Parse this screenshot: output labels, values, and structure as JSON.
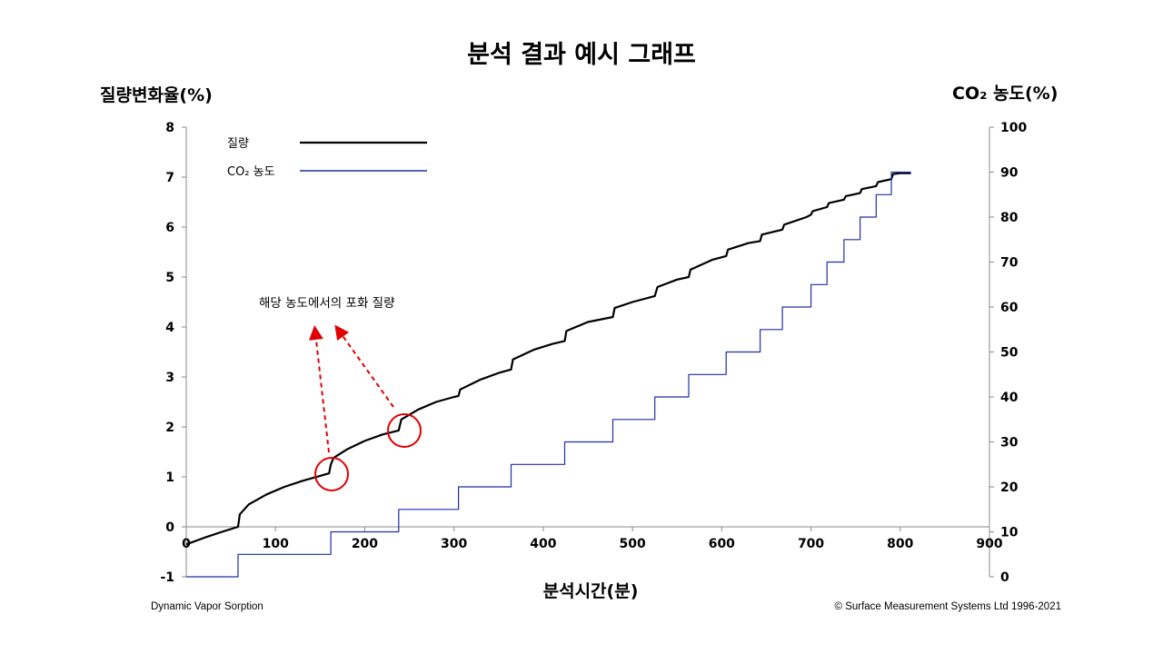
{
  "title": "분석 결과 예시 그래프",
  "footer": {
    "left": "Dynamic Vapor Sorption",
    "right": "© Surface Measurement Systems Ltd 1996-2021"
  },
  "annotation": "해당 농도에서의 포화 질량",
  "chart_data": {
    "type": "line",
    "xlabel": "분석시간(분)",
    "ylabel": "질량변화율(%)",
    "y2label": "CO₂ 농도(%)",
    "xlim": [
      0,
      900
    ],
    "ylim": [
      -1,
      8
    ],
    "y2lim": [
      0,
      100
    ],
    "xticks": [
      0,
      100,
      200,
      300,
      400,
      500,
      600,
      700,
      800,
      900
    ],
    "yticks": [
      -1,
      0,
      1,
      2,
      3,
      4,
      5,
      6,
      7,
      8
    ],
    "y2ticks": [
      0,
      10,
      20,
      30,
      40,
      50,
      60,
      70,
      80,
      90,
      100
    ],
    "legend_position": "top-left",
    "series": [
      {
        "name": "질량",
        "axis": "left",
        "color": "#000000",
        "points": [
          [
            0,
            -0.35
          ],
          [
            20,
            -0.22
          ],
          [
            40,
            -0.1
          ],
          [
            58,
            0.0
          ],
          [
            60,
            0.25
          ],
          [
            70,
            0.45
          ],
          [
            90,
            0.65
          ],
          [
            110,
            0.8
          ],
          [
            130,
            0.92
          ],
          [
            150,
            1.02
          ],
          [
            160,
            1.07
          ],
          [
            162,
            1.25
          ],
          [
            165,
            1.38
          ],
          [
            180,
            1.55
          ],
          [
            200,
            1.72
          ],
          [
            220,
            1.85
          ],
          [
            238,
            1.93
          ],
          [
            241,
            2.15
          ],
          [
            260,
            2.35
          ],
          [
            280,
            2.5
          ],
          [
            300,
            2.6
          ],
          [
            305,
            2.62
          ],
          [
            307,
            2.75
          ],
          [
            330,
            2.95
          ],
          [
            350,
            3.08
          ],
          [
            364,
            3.15
          ],
          [
            366,
            3.35
          ],
          [
            390,
            3.55
          ],
          [
            410,
            3.66
          ],
          [
            424,
            3.72
          ],
          [
            426,
            3.92
          ],
          [
            450,
            4.1
          ],
          [
            478,
            4.2
          ],
          [
            480,
            4.38
          ],
          [
            500,
            4.5
          ],
          [
            525,
            4.62
          ],
          [
            528,
            4.8
          ],
          [
            550,
            4.95
          ],
          [
            563,
            5.0
          ],
          [
            565,
            5.15
          ],
          [
            590,
            5.35
          ],
          [
            605,
            5.42
          ],
          [
            607,
            5.55
          ],
          [
            630,
            5.68
          ],
          [
            643,
            5.72
          ],
          [
            645,
            5.85
          ],
          [
            668,
            5.95
          ],
          [
            670,
            6.05
          ],
          [
            695,
            6.2
          ],
          [
            700,
            6.25
          ],
          [
            702,
            6.32
          ],
          [
            718,
            6.4
          ],
          [
            720,
            6.48
          ],
          [
            737,
            6.55
          ],
          [
            739,
            6.62
          ],
          [
            755,
            6.68
          ],
          [
            757,
            6.76
          ],
          [
            773,
            6.82
          ],
          [
            775,
            6.9
          ],
          [
            790,
            6.96
          ],
          [
            792,
            7.06
          ],
          [
            800,
            7.08
          ],
          [
            812,
            7.08
          ]
        ]
      },
      {
        "name": "CO₂ 농도",
        "axis": "right",
        "color": "#1f2fa8",
        "points": [
          [
            0,
            0
          ],
          [
            58,
            0
          ],
          [
            58,
            5
          ],
          [
            162,
            5
          ],
          [
            162,
            10
          ],
          [
            238,
            10
          ],
          [
            238,
            15
          ],
          [
            305,
            15
          ],
          [
            305,
            20
          ],
          [
            364,
            20
          ],
          [
            364,
            25
          ],
          [
            424,
            25
          ],
          [
            424,
            30
          ],
          [
            478,
            30
          ],
          [
            478,
            35
          ],
          [
            525,
            35
          ],
          [
            525,
            40
          ],
          [
            563,
            40
          ],
          [
            563,
            45
          ],
          [
            605,
            45
          ],
          [
            605,
            50
          ],
          [
            643,
            50
          ],
          [
            643,
            55
          ],
          [
            668,
            55
          ],
          [
            668,
            60
          ],
          [
            700,
            60
          ],
          [
            700,
            65
          ],
          [
            718,
            65
          ],
          [
            718,
            70
          ],
          [
            737,
            70
          ],
          [
            737,
            75
          ],
          [
            755,
            75
          ],
          [
            755,
            80
          ],
          [
            773,
            80
          ],
          [
            773,
            85
          ],
          [
            790,
            85
          ],
          [
            790,
            90
          ],
          [
            812,
            90
          ]
        ]
      }
    ]
  }
}
